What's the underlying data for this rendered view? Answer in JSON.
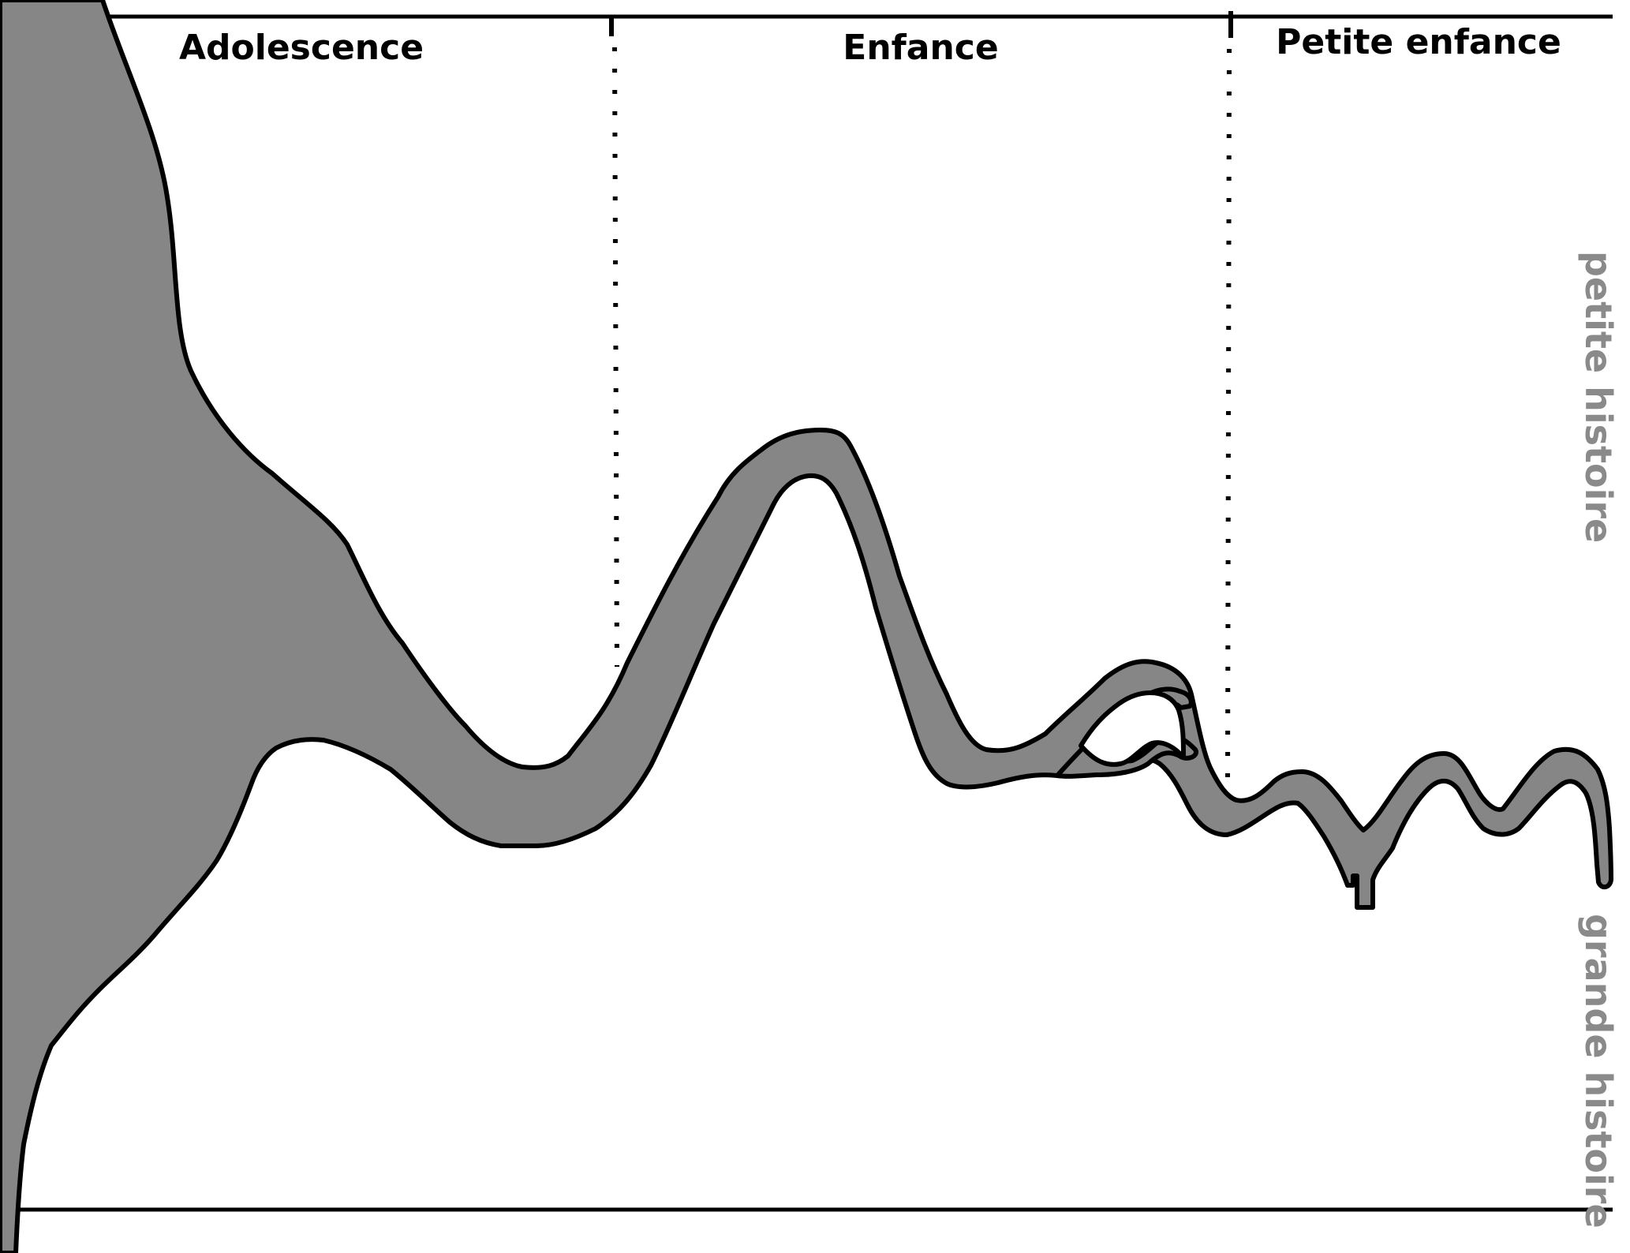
{
  "diagram": {
    "phases": [
      {
        "label": "Adolescence"
      },
      {
        "label": "Enfance"
      },
      {
        "label": "Petite enfance"
      }
    ],
    "axis": {
      "top_label": "petite histoire",
      "bottom_label": "grande histoire"
    },
    "colors": {
      "river_fill": "#868686",
      "outline": "#000000",
      "axis_text": "#8a8a8a",
      "background": "#ffffff"
    }
  }
}
